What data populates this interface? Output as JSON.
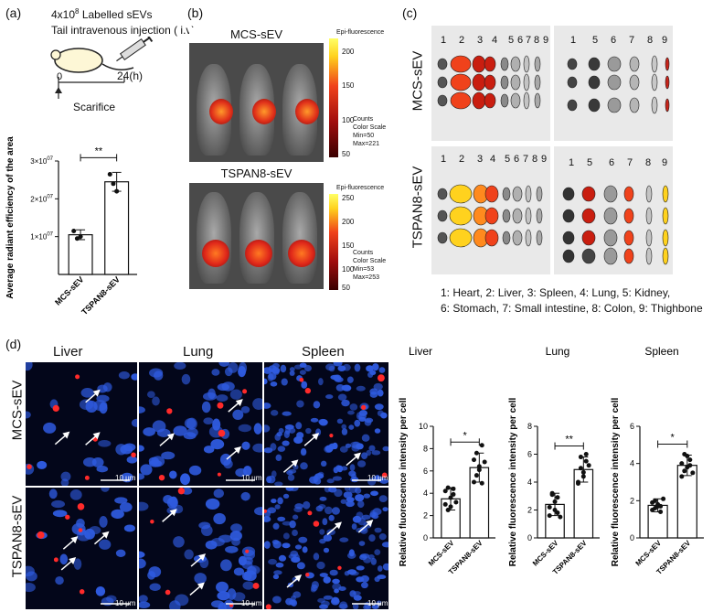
{
  "panel_a": {
    "label": "(a)",
    "dose_prefix": "4x10",
    "dose_exp": "8",
    "dose_suffix": " Labelled sEVs",
    "route": "Tail intravenous injection ( i.v)",
    "t0": "0",
    "t1": "24(h)",
    "sacrifice": "Scarifice",
    "sig": "**"
  },
  "panel_b": {
    "label": "(b)",
    "top_title": "MCS-sEV",
    "bottom_title": "TSPAN8-sEV",
    "legend_title": "Epi-fluorescence",
    "counts": "Counts",
    "color_scale": "Color Scale",
    "top_min": "Min=50",
    "top_max": "Max=221",
    "bottom_min": "Min=53",
    "bottom_max": "Max=253",
    "top_ticks": [
      "200",
      "150",
      "100",
      "50"
    ],
    "bottom_ticks": [
      "250",
      "200",
      "150",
      "100",
      "50"
    ]
  },
  "panel_c": {
    "label": "(c)",
    "row_labels": [
      "MCS-sEV",
      "TSPAN8-sEV"
    ],
    "left_numbers": [
      "1",
      "2",
      "3",
      "4",
      "5",
      "6",
      "7",
      "8",
      "9"
    ],
    "right_numbers": [
      "1",
      "5",
      "6",
      "7",
      "8",
      "9"
    ],
    "caption_line1": "1: Heart, 2: Liver, 3: Spleen, 4: Lung, 5: Kidney,",
    "caption_line2": "6: Stomach, 7: Small intestine, 8: Colon, 9:  Thighbone"
  },
  "panel_d": {
    "label": "(d)",
    "columns": [
      "Liver",
      "Lung",
      "Spleen"
    ],
    "rows": [
      "MCS-sEV",
      "TSPAN8-sEV"
    ],
    "scale_bar": "10 μm"
  },
  "colors": {
    "nuclei": "#2f5be0",
    "signal": "#ff2a2a",
    "background_micro": "#03061a"
  },
  "chart_data": [
    {
      "type": "bar",
      "title": "",
      "categories": [
        "MCS-sEV",
        "TSPAN8-sEV"
      ],
      "values": [
        10500000.0,
        24500000.0
      ],
      "errors": [
        1300000.0,
        2500000.0
      ],
      "points": [
        [
          11500000.0,
          9500000.0,
          10000000.0
        ],
        [
          26500000.0,
          24000000.0,
          22000000.0
        ]
      ],
      "ylabel": "Average radiant efficiency of the area",
      "yticks": [
        "1×10",
        "2×10",
        "3×10"
      ],
      "ytick_exp": "07",
      "ylim": [
        0,
        30000000.0
      ],
      "significance": "**"
    },
    {
      "type": "bar",
      "title": "Liver",
      "categories": [
        "MCS-sEV",
        "TSPAN8-sEV"
      ],
      "values": [
        3.5,
        6.3
      ],
      "errors": [
        1.0,
        1.3
      ],
      "points": [
        [
          3.0,
          4.5,
          2.8,
          3.9,
          3.2,
          4.2,
          2.5,
          3.6,
          4.4
        ],
        [
          5.0,
          7.6,
          6.1,
          4.9,
          6.8,
          7.0,
          5.6,
          6.4,
          8.3
        ]
      ],
      "ylabel": "Relative fluorescence intensity per cell",
      "yticks": [
        "0",
        "2",
        "4",
        "6",
        "8",
        "10"
      ],
      "ylim": [
        0,
        10
      ],
      "significance": "*"
    },
    {
      "type": "bar",
      "title": "Lung",
      "categories": [
        "MCS-sEV",
        "TSPAN8-sEV"
      ],
      "values": [
        2.4,
        4.9
      ],
      "errors": [
        0.8,
        0.9
      ],
      "points": [
        [
          1.6,
          3.2,
          2.0,
          2.9,
          1.5,
          2.2,
          3.1,
          2.6,
          1.8
        ],
        [
          4.0,
          5.8,
          4.4,
          6.0,
          5.2,
          3.9,
          5.0,
          4.7,
          5.5
        ]
      ],
      "ylabel": "Relative fluorescence intensity per cell",
      "yticks": [
        "0",
        "2",
        "4",
        "6",
        "8"
      ],
      "ylim": [
        0,
        8
      ],
      "significance": "**"
    },
    {
      "type": "bar",
      "title": "Spleen",
      "categories": [
        "MCS-sEV",
        "TSPAN8-sEV"
      ],
      "values": [
        1.75,
        3.9
      ],
      "errors": [
        0.35,
        0.55
      ],
      "points": [
        [
          1.5,
          2.0,
          1.7,
          1.4,
          2.1,
          1.9,
          1.6,
          1.8,
          1.7
        ],
        [
          3.3,
          4.5,
          3.8,
          4.2,
          3.5,
          4.0,
          3.6,
          4.4,
          3.9
        ]
      ],
      "ylabel": "Relative fluorescence intensity per cell",
      "yticks": [
        "0",
        "2",
        "4",
        "6"
      ],
      "ylim": [
        0,
        6
      ],
      "significance": "*"
    }
  ]
}
